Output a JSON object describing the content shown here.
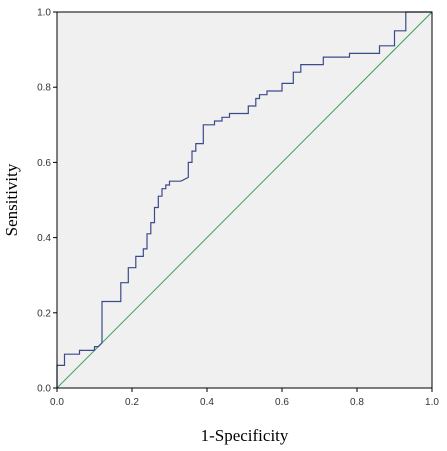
{
  "chart_data": {
    "type": "line",
    "title": "",
    "xlabel": "1-Specificity",
    "ylabel": "Sensitivity",
    "xlim": [
      0,
      1
    ],
    "ylim": [
      0,
      1
    ],
    "xticks": [
      "0.0",
      "0.2",
      "0.4",
      "0.6",
      "0.8",
      "1.0"
    ],
    "yticks": [
      "0.0",
      "0.2",
      "0.4",
      "0.6",
      "0.8",
      "1.0"
    ],
    "grid": false,
    "legend": "none",
    "colors": {
      "background": "#f0f0f0",
      "roc": "#3b4a8c",
      "reference": "#3aa35a",
      "axes": "#000000"
    },
    "series": [
      {
        "x": [
          0,
          0,
          0.02,
          0.02,
          0.06,
          0.06,
          0.1,
          0.1,
          0.11,
          0.12,
          0.12,
          0.15,
          0.17,
          0.17,
          0.19,
          0.19,
          0.21,
          0.21,
          0.23,
          0.23,
          0.24,
          0.24,
          0.25,
          0.25,
          0.26,
          0.26,
          0.27,
          0.27,
          0.28,
          0.28,
          0.29,
          0.29,
          0.3,
          0.3,
          0.33,
          0.35,
          0.35,
          0.36,
          0.36,
          0.37,
          0.37,
          0.39,
          0.39,
          0.42,
          0.42,
          0.44,
          0.44,
          0.46,
          0.46,
          0.51,
          0.51,
          0.53,
          0.53,
          0.54,
          0.54,
          0.56,
          0.56,
          0.6,
          0.6,
          0.63,
          0.63,
          0.65,
          0.65,
          0.71,
          0.71,
          0.78,
          0.78,
          0.86,
          0.86,
          0.9,
          0.9,
          0.93,
          0.93,
          1
        ],
        "y": [
          0,
          0.06,
          0.06,
          0.09,
          0.09,
          0.1,
          0.1,
          0.11,
          0.11,
          0.12,
          0.23,
          0.23,
          0.23,
          0.28,
          0.28,
          0.32,
          0.32,
          0.35,
          0.35,
          0.37,
          0.37,
          0.41,
          0.41,
          0.44,
          0.44,
          0.48,
          0.48,
          0.51,
          0.51,
          0.53,
          0.53,
          0.54,
          0.54,
          0.55,
          0.55,
          0.56,
          0.6,
          0.6,
          0.63,
          0.63,
          0.65,
          0.65,
          0.7,
          0.7,
          0.71,
          0.71,
          0.72,
          0.72,
          0.73,
          0.73,
          0.75,
          0.75,
          0.77,
          0.77,
          0.78,
          0.78,
          0.79,
          0.79,
          0.81,
          0.81,
          0.84,
          0.84,
          0.86,
          0.86,
          0.88,
          0.88,
          0.89,
          0.89,
          0.91,
          0.91,
          0.95,
          0.95,
          1,
          1
        ]
      },
      {
        "x": [
          0,
          1
        ],
        "y": [
          0,
          1
        ]
      }
    ]
  }
}
